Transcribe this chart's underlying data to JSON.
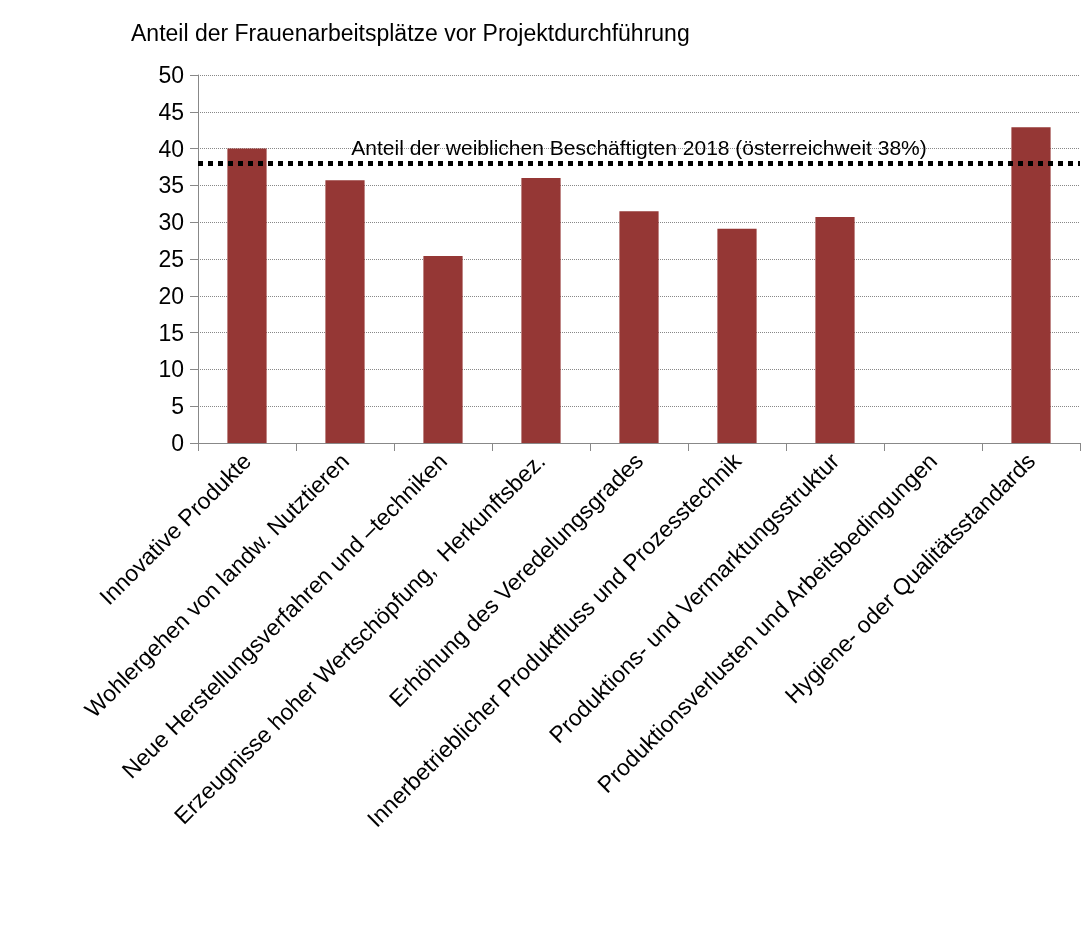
{
  "chart_data": {
    "type": "bar",
    "title": "Anteil der Frauenarbeitsplätze vor Projektdurchführung",
    "categories": [
      "Innovative Produkte",
      "Wohlergehen von landw. Nutztieren",
      "Neue Herstellungsverfahren und –techniken",
      "Erzeugnisse hoher Wertschöpfung,  Herkunftsbez.",
      "Erhöhung des Veredelungsgrades",
      "Innerbetrieblicher Produktfluss und Prozesstechnik",
      "Produktions- und Vermarktungsstruktur",
      "Produktionsverlusten und Arbeitsbedingungen",
      "Hygiene- oder Qualitätsstandards"
    ],
    "values": [
      40,
      35.7,
      25.4,
      36,
      31.5,
      29.1,
      30.7,
      null,
      42.9
    ],
    "color": "#953735",
    "ylim": [
      0,
      50
    ],
    "yticks": [
      0,
      5,
      10,
      15,
      20,
      25,
      30,
      35,
      40,
      45,
      50
    ],
    "grid": "y",
    "ref_lines": [
      {
        "axis": "y",
        "value": 38,
        "label": "Anteil der weiblichen Beschäftigten 2018 (österreichweit 38%)",
        "color": "#000000",
        "line_style": "dotted"
      }
    ]
  }
}
